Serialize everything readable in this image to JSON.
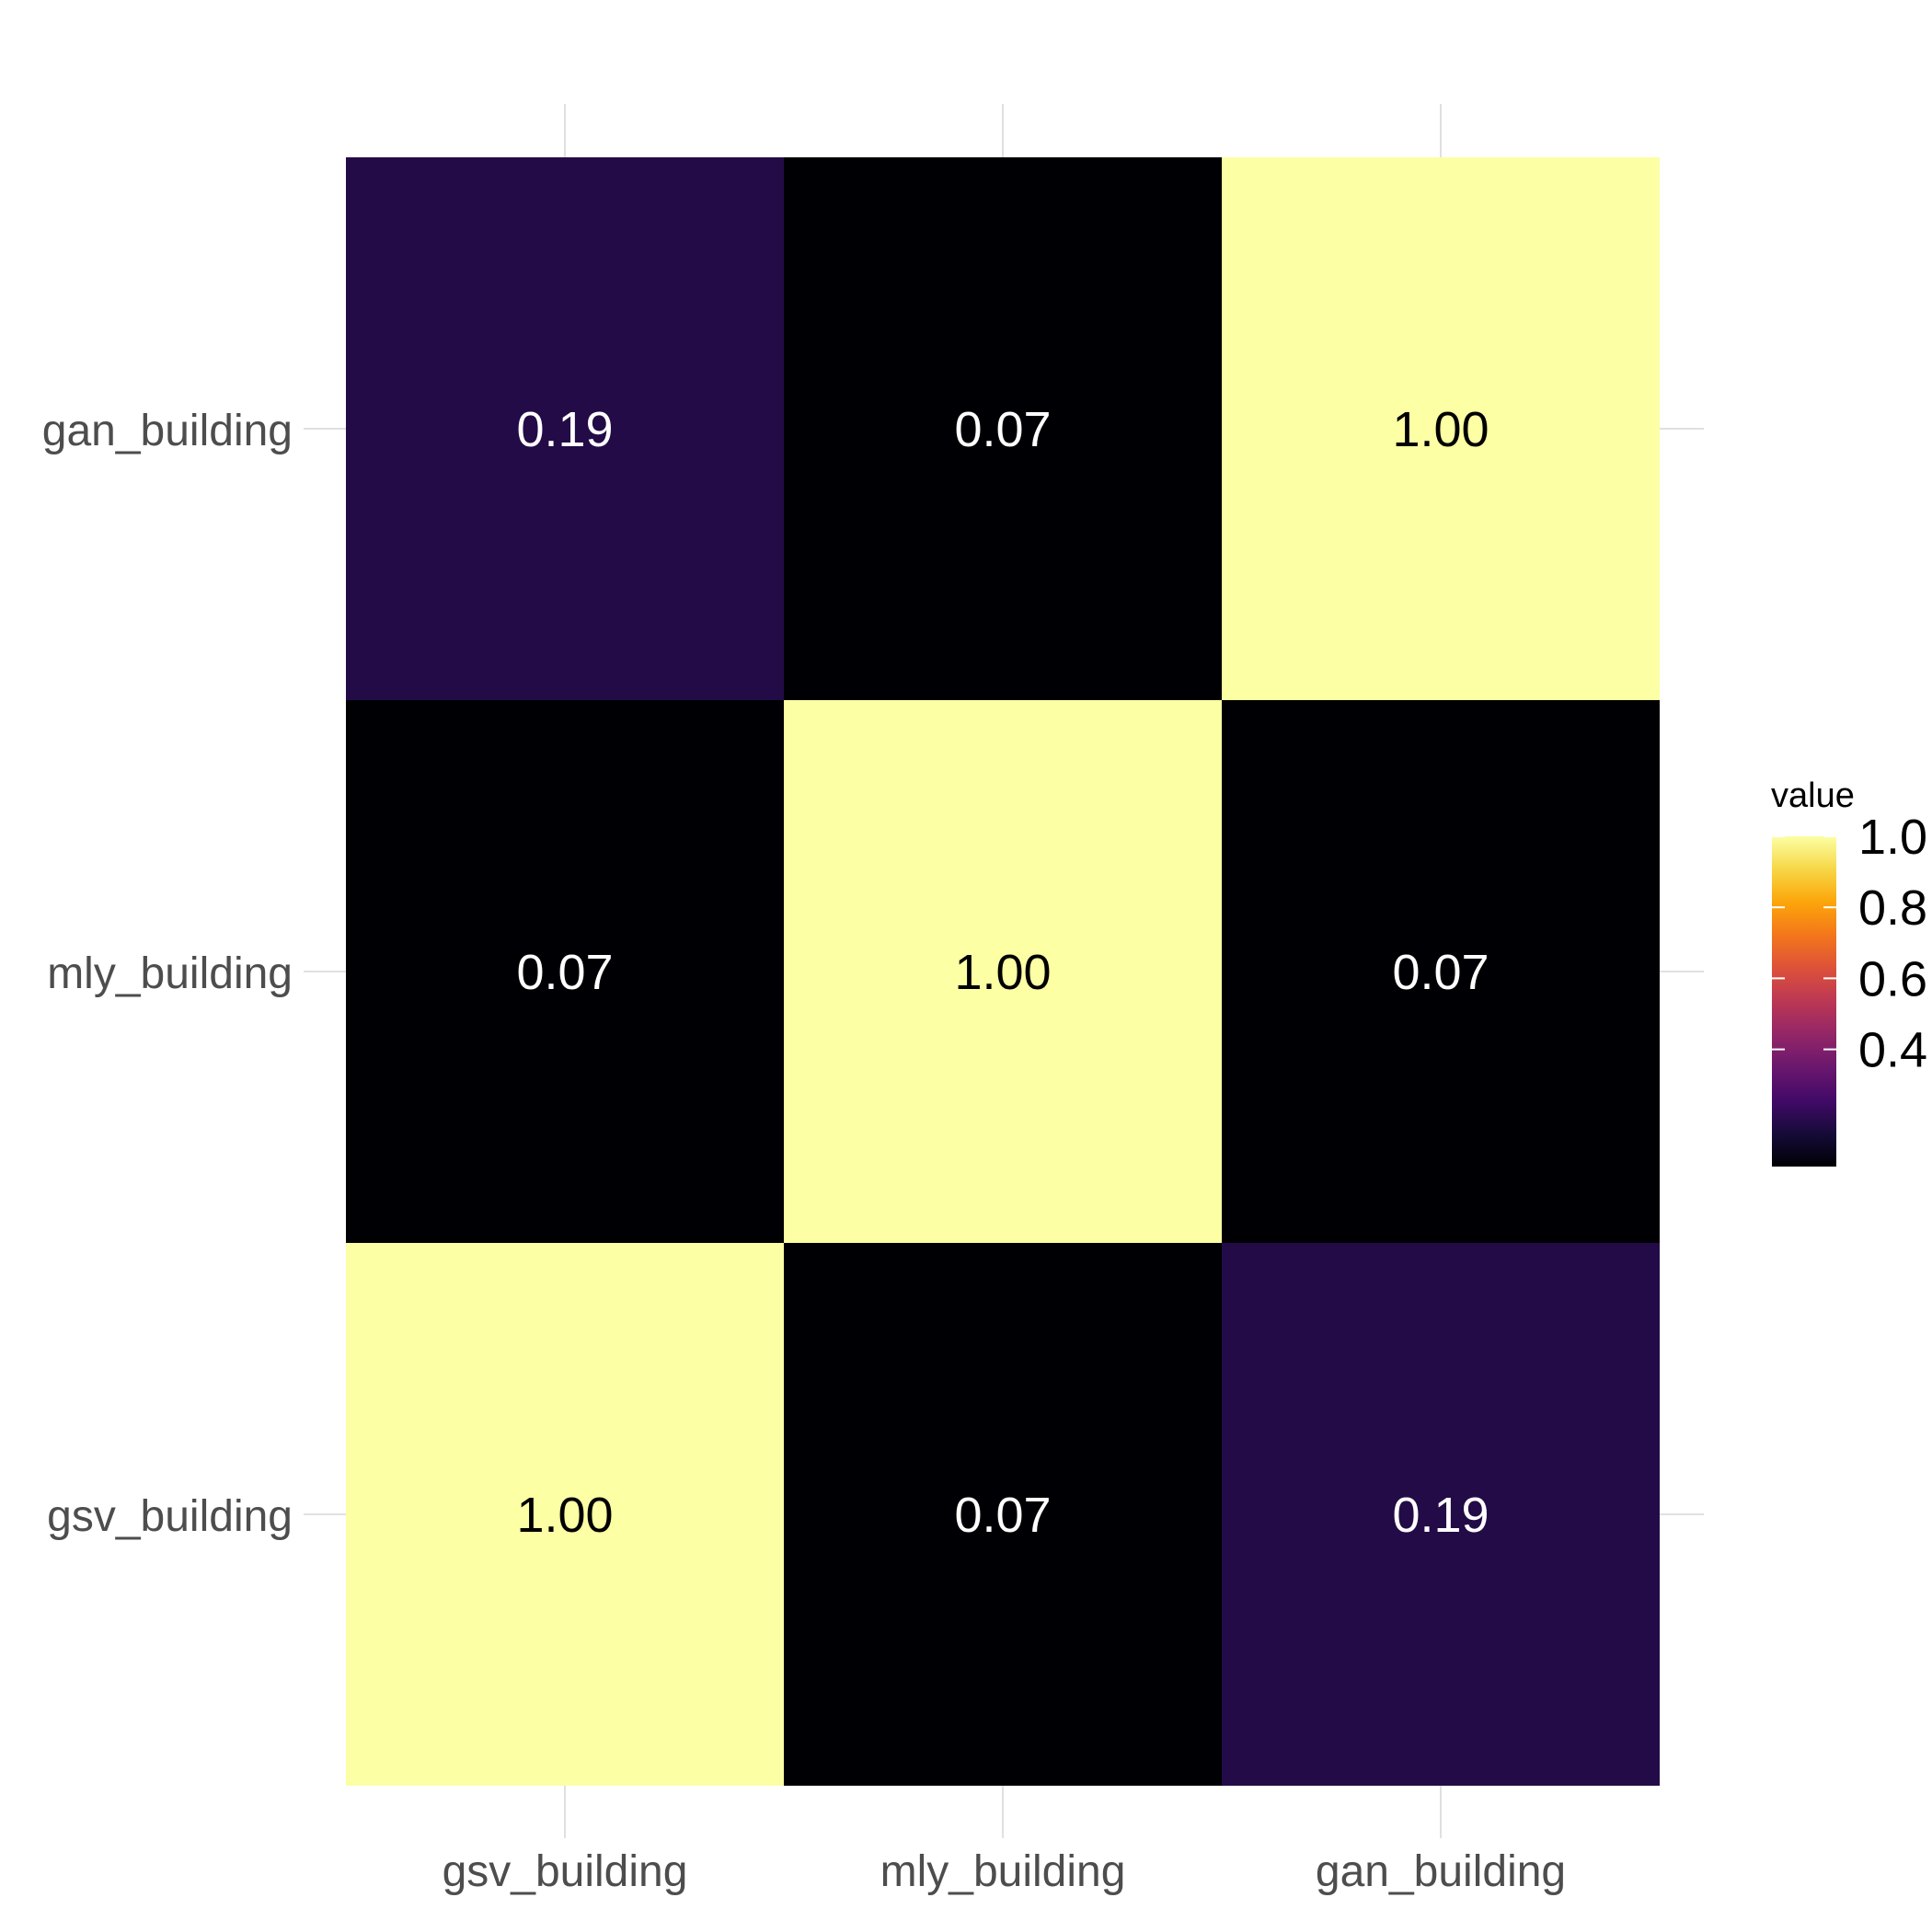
{
  "chart_data": {
    "type": "heatmap",
    "title": "",
    "xlabel": "",
    "ylabel": "",
    "x_categories": [
      "gsv_building",
      "mly_building",
      "gan_building"
    ],
    "y_categories": [
      "gsv_building",
      "mly_building",
      "gan_building"
    ],
    "values": [
      [
        1.0,
        0.07,
        0.19
      ],
      [
        0.07,
        1.0,
        0.07
      ],
      [
        0.19,
        0.07,
        1.0
      ]
    ],
    "value_labels": [
      [
        "1.00",
        "0.07",
        "0.19"
      ],
      [
        "0.07",
        "1.00",
        "0.07"
      ],
      [
        "0.19",
        "0.07",
        "1.00"
      ]
    ],
    "colorscale": "inferno",
    "color_range": [
      0.07,
      1.0
    ],
    "legend": {
      "title": "value",
      "placement": "right",
      "ticks": [
        0.4,
        0.6,
        0.8,
        1.0
      ],
      "tick_labels": [
        "0.4",
        "0.6",
        "0.8",
        "1.0"
      ]
    },
    "grid": true
  }
}
